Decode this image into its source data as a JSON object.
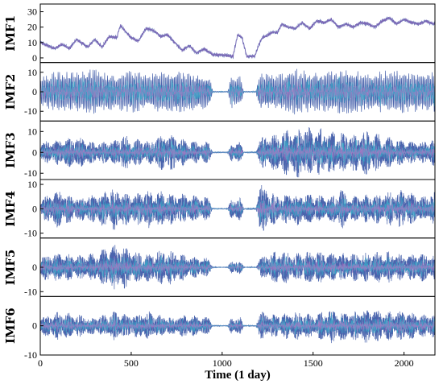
{
  "chart_data": {
    "type": "line",
    "xlabel": "Time (1 day)",
    "xlim": [
      0,
      2170
    ],
    "xticks": [
      0,
      500,
      1000,
      1500,
      2000
    ],
    "gaps": [
      [
        950,
        1030
      ],
      [
        1120,
        1185
      ]
    ],
    "colors": {
      "primary": "#4a64ad",
      "secondary": "#3aa6c8",
      "accent": "#c86fc4"
    },
    "panels": [
      {
        "name": "IMF1",
        "ylim": [
          -3,
          35
        ],
        "yticks": [
          0,
          10,
          20,
          30
        ],
        "kind": "trend",
        "trend": [
          [
            0,
            10
          ],
          [
            40,
            8
          ],
          [
            80,
            6
          ],
          [
            120,
            9
          ],
          [
            160,
            6
          ],
          [
            200,
            12
          ],
          [
            260,
            7
          ],
          [
            300,
            12
          ],
          [
            340,
            7
          ],
          [
            380,
            14
          ],
          [
            420,
            13
          ],
          [
            440,
            21
          ],
          [
            470,
            17
          ],
          [
            500,
            13
          ],
          [
            540,
            11
          ],
          [
            580,
            19
          ],
          [
            620,
            18
          ],
          [
            660,
            14
          ],
          [
            700,
            15
          ],
          [
            740,
            10
          ],
          [
            780,
            5
          ],
          [
            820,
            8
          ],
          [
            860,
            3
          ],
          [
            900,
            6
          ],
          [
            950,
            2
          ],
          [
            1000,
            2
          ],
          [
            1060,
            1
          ],
          [
            1085,
            15
          ],
          [
            1110,
            13
          ],
          [
            1135,
            1
          ],
          [
            1180,
            1
          ],
          [
            1200,
            8
          ],
          [
            1220,
            13
          ],
          [
            1240,
            14
          ],
          [
            1280,
            17
          ],
          [
            1300,
            16
          ],
          [
            1330,
            22
          ],
          [
            1360,
            20
          ],
          [
            1400,
            19
          ],
          [
            1440,
            23
          ],
          [
            1480,
            19
          ],
          [
            1520,
            24
          ],
          [
            1560,
            23
          ],
          [
            1600,
            25
          ],
          [
            1640,
            20
          ],
          [
            1680,
            22
          ],
          [
            1720,
            20
          ],
          [
            1760,
            23
          ],
          [
            1800,
            22
          ],
          [
            1840,
            20
          ],
          [
            1880,
            24
          ],
          [
            1920,
            26
          ],
          [
            1960,
            22
          ],
          [
            2000,
            25
          ],
          [
            2040,
            23
          ],
          [
            2080,
            22
          ],
          [
            2120,
            24
          ],
          [
            2160,
            22
          ]
        ]
      },
      {
        "name": "IMF2",
        "ylim": [
          -15,
          15
        ],
        "yticks": [
          -10,
          0,
          10
        ],
        "kind": "oscillation",
        "period": 8,
        "envelope": [
          [
            0,
            8
          ],
          [
            100,
            11
          ],
          [
            200,
            10
          ],
          [
            300,
            12
          ],
          [
            400,
            9
          ],
          [
            500,
            11
          ],
          [
            600,
            9
          ],
          [
            700,
            12
          ],
          [
            800,
            10
          ],
          [
            900,
            9
          ],
          [
            1000,
            9
          ],
          [
            1100,
            8
          ],
          [
            1200,
            10
          ],
          [
            1300,
            9
          ],
          [
            1400,
            12
          ],
          [
            1500,
            10
          ],
          [
            1600,
            11
          ],
          [
            1700,
            12
          ],
          [
            1800,
            10
          ],
          [
            1900,
            11
          ],
          [
            2000,
            11
          ],
          [
            2100,
            10
          ],
          [
            2170,
            11
          ]
        ]
      },
      {
        "name": "IMF3",
        "ylim": [
          -13,
          15
        ],
        "yticks": [
          -10,
          0,
          10
        ],
        "kind": "noise",
        "envelope": [
          [
            0,
            5
          ],
          [
            100,
            6
          ],
          [
            200,
            8
          ],
          [
            300,
            5
          ],
          [
            400,
            6
          ],
          [
            450,
            9
          ],
          [
            500,
            7
          ],
          [
            600,
            6
          ],
          [
            700,
            10
          ],
          [
            800,
            6
          ],
          [
            900,
            5
          ],
          [
            1000,
            5
          ],
          [
            1100,
            5
          ],
          [
            1200,
            7
          ],
          [
            1300,
            9
          ],
          [
            1400,
            13
          ],
          [
            1500,
            12
          ],
          [
            1600,
            11
          ],
          [
            1700,
            9
          ],
          [
            1800,
            11
          ],
          [
            1900,
            8
          ],
          [
            2000,
            6
          ],
          [
            2100,
            5
          ],
          [
            2170,
            7
          ]
        ]
      },
      {
        "name": "IMF4",
        "ylim": [
          -12,
          12
        ],
        "yticks": [
          -10,
          0,
          10
        ],
        "kind": "noise",
        "envelope": [
          [
            0,
            4
          ],
          [
            100,
            8
          ],
          [
            200,
            5
          ],
          [
            300,
            6
          ],
          [
            400,
            9
          ],
          [
            500,
            6
          ],
          [
            600,
            8
          ],
          [
            700,
            7
          ],
          [
            800,
            6
          ],
          [
            900,
            5
          ],
          [
            1000,
            4
          ],
          [
            1100,
            5
          ],
          [
            1200,
            11
          ],
          [
            1300,
            6
          ],
          [
            1400,
            7
          ],
          [
            1500,
            6
          ],
          [
            1600,
            5
          ],
          [
            1650,
            9
          ],
          [
            1700,
            5
          ],
          [
            1800,
            6
          ],
          [
            1900,
            7
          ],
          [
            2000,
            8
          ],
          [
            2100,
            5
          ],
          [
            2170,
            7
          ]
        ]
      },
      {
        "name": "IMF5",
        "ylim": [
          -12,
          12
        ],
        "yticks": [
          -10,
          0
        ],
        "kind": "noise",
        "envelope": [
          [
            0,
            5
          ],
          [
            100,
            6
          ],
          [
            200,
            5
          ],
          [
            300,
            6
          ],
          [
            350,
            8
          ],
          [
            400,
            9
          ],
          [
            450,
            10
          ],
          [
            500,
            7
          ],
          [
            600,
            6
          ],
          [
            700,
            8
          ],
          [
            800,
            5
          ],
          [
            900,
            4
          ],
          [
            1000,
            3
          ],
          [
            1100,
            3
          ],
          [
            1200,
            4
          ],
          [
            1300,
            7
          ],
          [
            1400,
            6
          ],
          [
            1500,
            7
          ],
          [
            1600,
            6
          ],
          [
            1700,
            6
          ],
          [
            1800,
            6
          ],
          [
            1900,
            7
          ],
          [
            2000,
            5
          ],
          [
            2100,
            6
          ],
          [
            2170,
            5
          ]
        ]
      },
      {
        "name": "IMF6",
        "ylim": [
          -10,
          10
        ],
        "yticks": [
          -10,
          0
        ],
        "kind": "noise",
        "envelope": [
          [
            0,
            3
          ],
          [
            100,
            5
          ],
          [
            200,
            4
          ],
          [
            300,
            3
          ],
          [
            400,
            5
          ],
          [
            500,
            4
          ],
          [
            600,
            5
          ],
          [
            700,
            3
          ],
          [
            800,
            4
          ],
          [
            900,
            3
          ],
          [
            1000,
            3
          ],
          [
            1100,
            3
          ],
          [
            1200,
            5
          ],
          [
            1300,
            4
          ],
          [
            1400,
            5
          ],
          [
            1500,
            4
          ],
          [
            1600,
            6
          ],
          [
            1700,
            5
          ],
          [
            1800,
            6
          ],
          [
            1900,
            5
          ],
          [
            2000,
            5
          ],
          [
            2100,
            4
          ],
          [
            2170,
            5
          ]
        ]
      }
    ]
  }
}
